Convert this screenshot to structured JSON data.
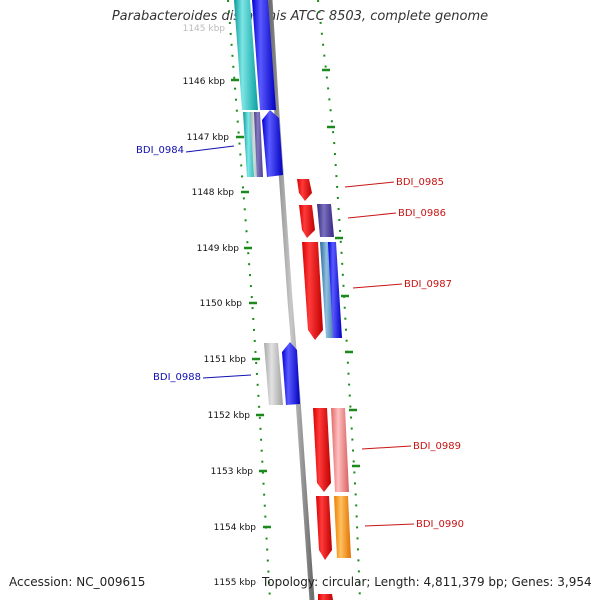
{
  "title": "Parabacteroides distasonis ATCC 8503, complete genome",
  "footer": {
    "accession": "Accession: NC_009615",
    "summary": "Topology: circular; Length: 4,811,379 bp; Genes: 3,954"
  },
  "colors": {
    "backbone": "#8a8a8a",
    "tick_dots": "#1a8a1a",
    "left_label": "#1010b0",
    "right_label": "#c81414"
  },
  "scale_ticks": [
    {
      "label": "1145 kbp"
    },
    {
      "label": "1146 kbp"
    },
    {
      "label": "1147 kbp"
    },
    {
      "label": "1148 kbp"
    },
    {
      "label": "1149 kbp"
    },
    {
      "label": "1150 kbp"
    },
    {
      "label": "1151 kbp"
    },
    {
      "label": "1152 kbp"
    },
    {
      "label": "1153 kbp"
    },
    {
      "label": "1154 kbp"
    },
    {
      "label": "1155 kbp"
    }
  ],
  "gene_labels": [
    {
      "name": "BDI_0984",
      "side": "left"
    },
    {
      "name": "BDI_0985",
      "side": "right"
    },
    {
      "name": "BDI_0986",
      "side": "right"
    },
    {
      "name": "BDI_0987",
      "side": "right"
    },
    {
      "name": "BDI_0988",
      "side": "left"
    },
    {
      "name": "BDI_0989",
      "side": "right"
    },
    {
      "name": "BDI_0990",
      "side": "right"
    }
  ]
}
